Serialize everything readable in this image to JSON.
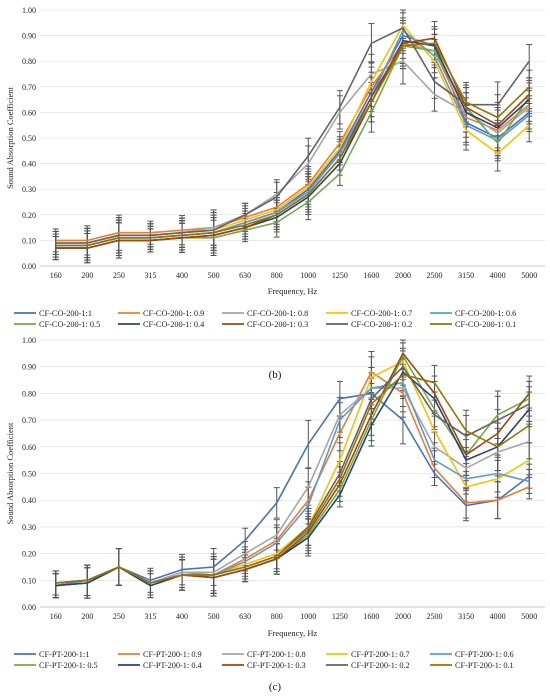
{
  "chart_data": [
    {
      "type": "line",
      "panel_label": "(b)",
      "xlabel": "Frequency, Hz",
      "ylabel": "Sound Absorption Coefficient",
      "ylim": [
        0,
        1
      ],
      "yticks": [
        "0.00",
        "0.10",
        "0.20",
        "0.30",
        "0.40",
        "0.50",
        "0.60",
        "0.70",
        "0.80",
        "0.90",
        "1.00"
      ],
      "grid": true,
      "legend_position": "bottom",
      "categories": [
        "160",
        "200",
        "250",
        "315",
        "400",
        "500",
        "630",
        "800",
        "1000",
        "1250",
        "1600",
        "2000",
        "2500",
        "3150",
        "4000",
        "5000"
      ],
      "series": [
        {
          "name": "CF-CO-200-1:1",
          "color": "#4472C4",
          "values": [
            0.08,
            0.08,
            0.11,
            0.11,
            0.12,
            0.13,
            0.17,
            0.21,
            0.3,
            0.45,
            0.68,
            0.9,
            0.86,
            0.56,
            0.5,
            0.6
          ]
        },
        {
          "name": "CF-CO-200-1: 0.9",
          "color": "#ED7D31",
          "values": [
            0.1,
            0.1,
            0.13,
            0.13,
            0.14,
            0.15,
            0.19,
            0.23,
            0.32,
            0.48,
            0.7,
            0.87,
            0.84,
            0.58,
            0.53,
            0.63
          ]
        },
        {
          "name": "CF-CO-200-1: 0.8",
          "color": "#A5A5A5",
          "values": [
            0.09,
            0.09,
            0.12,
            0.12,
            0.13,
            0.15,
            0.2,
            0.28,
            0.4,
            0.6,
            0.75,
            0.8,
            0.67,
            0.6,
            0.52,
            0.62
          ]
        },
        {
          "name": "CF-CO-200-1: 0.7",
          "color": "#FFC000",
          "values": [
            0.09,
            0.09,
            0.12,
            0.12,
            0.13,
            0.14,
            0.18,
            0.22,
            0.31,
            0.46,
            0.72,
            0.94,
            0.8,
            0.53,
            0.44,
            0.55
          ]
        },
        {
          "name": "CF-CO-200-1: 0.6",
          "color": "#5B9BD5",
          "values": [
            0.08,
            0.08,
            0.11,
            0.11,
            0.12,
            0.13,
            0.17,
            0.21,
            0.29,
            0.44,
            0.66,
            0.92,
            0.82,
            0.55,
            0.49,
            0.59
          ]
        },
        {
          "name": "CF-CO-200-1: 0.5",
          "color": "#70AD47",
          "values": [
            0.07,
            0.07,
            0.1,
            0.1,
            0.11,
            0.11,
            0.14,
            0.17,
            0.25,
            0.36,
            0.6,
            0.86,
            0.84,
            0.62,
            0.48,
            0.66
          ]
        },
        {
          "name": "CF-CO-200-1: 0.4",
          "color": "#264478",
          "values": [
            0.07,
            0.07,
            0.1,
            0.1,
            0.11,
            0.12,
            0.15,
            0.19,
            0.27,
            0.4,
            0.64,
            0.88,
            0.86,
            0.6,
            0.54,
            0.65
          ]
        },
        {
          "name": "CF-CO-200-1: 0.3",
          "color": "#9E480E",
          "values": [
            0.07,
            0.07,
            0.1,
            0.1,
            0.11,
            0.12,
            0.15,
            0.2,
            0.28,
            0.42,
            0.66,
            0.87,
            0.89,
            0.62,
            0.55,
            0.67
          ]
        },
        {
          "name": "CF-CO-200-1: 0.2",
          "color": "#636363",
          "values": [
            0.09,
            0.09,
            0.12,
            0.12,
            0.13,
            0.14,
            0.2,
            0.27,
            0.43,
            0.62,
            0.87,
            0.93,
            0.72,
            0.63,
            0.63,
            0.8
          ]
        },
        {
          "name": "CF-CO-200-1: 0.1",
          "color": "#997300",
          "values": [
            0.08,
            0.08,
            0.11,
            0.11,
            0.12,
            0.13,
            0.16,
            0.2,
            0.28,
            0.42,
            0.64,
            0.86,
            0.87,
            0.64,
            0.58,
            0.7
          ]
        }
      ]
    },
    {
      "type": "line",
      "panel_label": "(c)",
      "xlabel": "Frequency, Hz",
      "ylabel": "Sound Absorption Coefficient",
      "ylim": [
        0,
        1
      ],
      "yticks": [
        "0.00",
        "0.10",
        "0.20",
        "0.30",
        "0.40",
        "0.50",
        "0.60",
        "0.70",
        "0.80",
        "0.90",
        "1.00"
      ],
      "grid": true,
      "legend_position": "bottom",
      "categories": [
        "160",
        "200",
        "250",
        "315",
        "400",
        "500",
        "630",
        "800",
        "1000",
        "1250",
        "1600",
        "2000",
        "2500",
        "3150",
        "4000",
        "5000"
      ],
      "series": [
        {
          "name": "CF-PT-200-1:1",
          "color": "#4472C4",
          "values": [
            0.08,
            0.09,
            0.15,
            0.1,
            0.14,
            0.15,
            0.25,
            0.39,
            0.61,
            0.78,
            0.8,
            0.7,
            0.5,
            0.38,
            0.4,
            0.49
          ]
        },
        {
          "name": "CF-PT-200-1: 0.9",
          "color": "#ED7D31",
          "values": [
            0.09,
            0.1,
            0.15,
            0.09,
            0.13,
            0.12,
            0.18,
            0.25,
            0.4,
            0.65,
            0.88,
            0.8,
            0.52,
            0.39,
            0.4,
            0.45
          ]
        },
        {
          "name": "CF-PT-200-1: 0.8",
          "color": "#A5A5A5",
          "values": [
            0.09,
            0.1,
            0.15,
            0.09,
            0.13,
            0.13,
            0.2,
            0.27,
            0.45,
            0.72,
            0.82,
            0.82,
            0.6,
            0.52,
            0.58,
            0.62
          ]
        },
        {
          "name": "CF-PT-200-1: 0.7",
          "color": "#FFC000",
          "values": [
            0.08,
            0.1,
            0.15,
            0.09,
            0.12,
            0.12,
            0.16,
            0.2,
            0.3,
            0.55,
            0.86,
            0.92,
            0.66,
            0.45,
            0.48,
            0.55
          ]
        },
        {
          "name": "CF-PT-200-1: 0.6",
          "color": "#5B9BD5",
          "values": [
            0.08,
            0.1,
            0.15,
            0.09,
            0.12,
            0.12,
            0.17,
            0.24,
            0.38,
            0.7,
            0.82,
            0.84,
            0.55,
            0.48,
            0.5,
            0.47
          ]
        },
        {
          "name": "CF-PT-200-1: 0.5",
          "color": "#70AD47",
          "values": [
            0.08,
            0.09,
            0.15,
            0.08,
            0.12,
            0.11,
            0.14,
            0.18,
            0.27,
            0.44,
            0.7,
            0.94,
            0.74,
            0.57,
            0.72,
            0.78
          ]
        },
        {
          "name": "CF-PT-200-1: 0.4",
          "color": "#264478",
          "values": [
            0.08,
            0.09,
            0.15,
            0.08,
            0.12,
            0.11,
            0.14,
            0.18,
            0.26,
            0.42,
            0.68,
            0.88,
            0.78,
            0.55,
            0.6,
            0.74
          ]
        },
        {
          "name": "CF-PT-200-1: 0.3",
          "color": "#9E480E",
          "values": [
            0.09,
            0.1,
            0.15,
            0.09,
            0.12,
            0.11,
            0.14,
            0.18,
            0.28,
            0.46,
            0.72,
            0.95,
            0.8,
            0.57,
            0.65,
            0.8
          ]
        },
        {
          "name": "CF-PT-200-1: 0.2",
          "color": "#636363",
          "values": [
            0.09,
            0.1,
            0.15,
            0.09,
            0.12,
            0.12,
            0.15,
            0.19,
            0.3,
            0.5,
            0.78,
            0.9,
            0.72,
            0.64,
            0.7,
            0.76
          ]
        },
        {
          "name": "CF-PT-200-1: 0.1",
          "color": "#997300",
          "values": [
            0.09,
            0.1,
            0.15,
            0.09,
            0.12,
            0.12,
            0.15,
            0.19,
            0.29,
            0.48,
            0.76,
            0.87,
            0.84,
            0.66,
            0.6,
            0.68
          ]
        }
      ]
    }
  ]
}
